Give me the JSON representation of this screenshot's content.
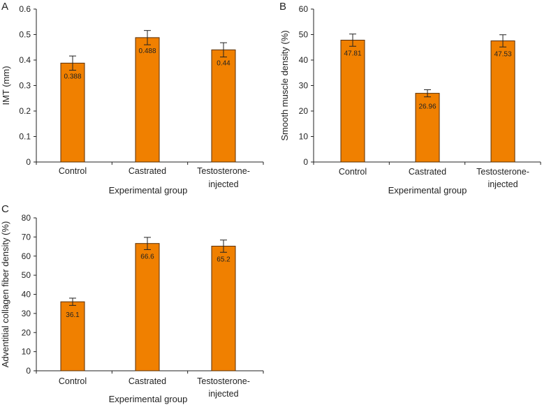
{
  "colors": {
    "bar_fill": "#f08000",
    "bar_stroke": "#5a2e00",
    "axis": "#222222"
  },
  "chart_data": [
    {
      "panel": "A",
      "type": "bar",
      "categories": [
        "Control",
        "Castrated",
        "Testosterone-|injected"
      ],
      "values": [
        0.388,
        0.488,
        0.44
      ],
      "value_labels": [
        "0.388",
        "0.488",
        "0.44"
      ],
      "errors": [
        0.028,
        0.028,
        0.028
      ],
      "xlabel": "Experimental group",
      "ylabel": "IMT (mm)",
      "ylim": [
        0,
        0.6
      ],
      "yticks": [
        "0",
        "0.1",
        "0.2",
        "0.3",
        "0.4",
        "0.5",
        "0.6"
      ],
      "grid": false
    },
    {
      "panel": "B",
      "type": "bar",
      "categories": [
        "Control",
        "Castrated",
        "Testosterone-|injected"
      ],
      "values": [
        47.81,
        26.96,
        47.53
      ],
      "value_labels": [
        "47.81",
        "26.96",
        "47.53"
      ],
      "errors": [
        2.4,
        1.4,
        2.4
      ],
      "xlabel": "Experimental group",
      "ylabel": "Smooth muscle density (%)",
      "ylim": [
        0,
        60
      ],
      "yticks": [
        "0",
        "10",
        "20",
        "30",
        "40",
        "50",
        "60"
      ],
      "grid": false
    },
    {
      "panel": "C",
      "type": "bar",
      "categories": [
        "Control",
        "Castrated",
        "Testosterone-|injected"
      ],
      "values": [
        36.1,
        66.6,
        65.2
      ],
      "value_labels": [
        "36.1",
        "66.6",
        "65.2"
      ],
      "errors": [
        1.9,
        3.2,
        3.2
      ],
      "xlabel": "Experimental group",
      "ylabel": "Adventitial collagen fiber density (%)",
      "ylim": [
        0,
        80
      ],
      "yticks": [
        "0",
        "10",
        "20",
        "30",
        "40",
        "50",
        "60",
        "70",
        "80"
      ],
      "grid": false
    }
  ]
}
